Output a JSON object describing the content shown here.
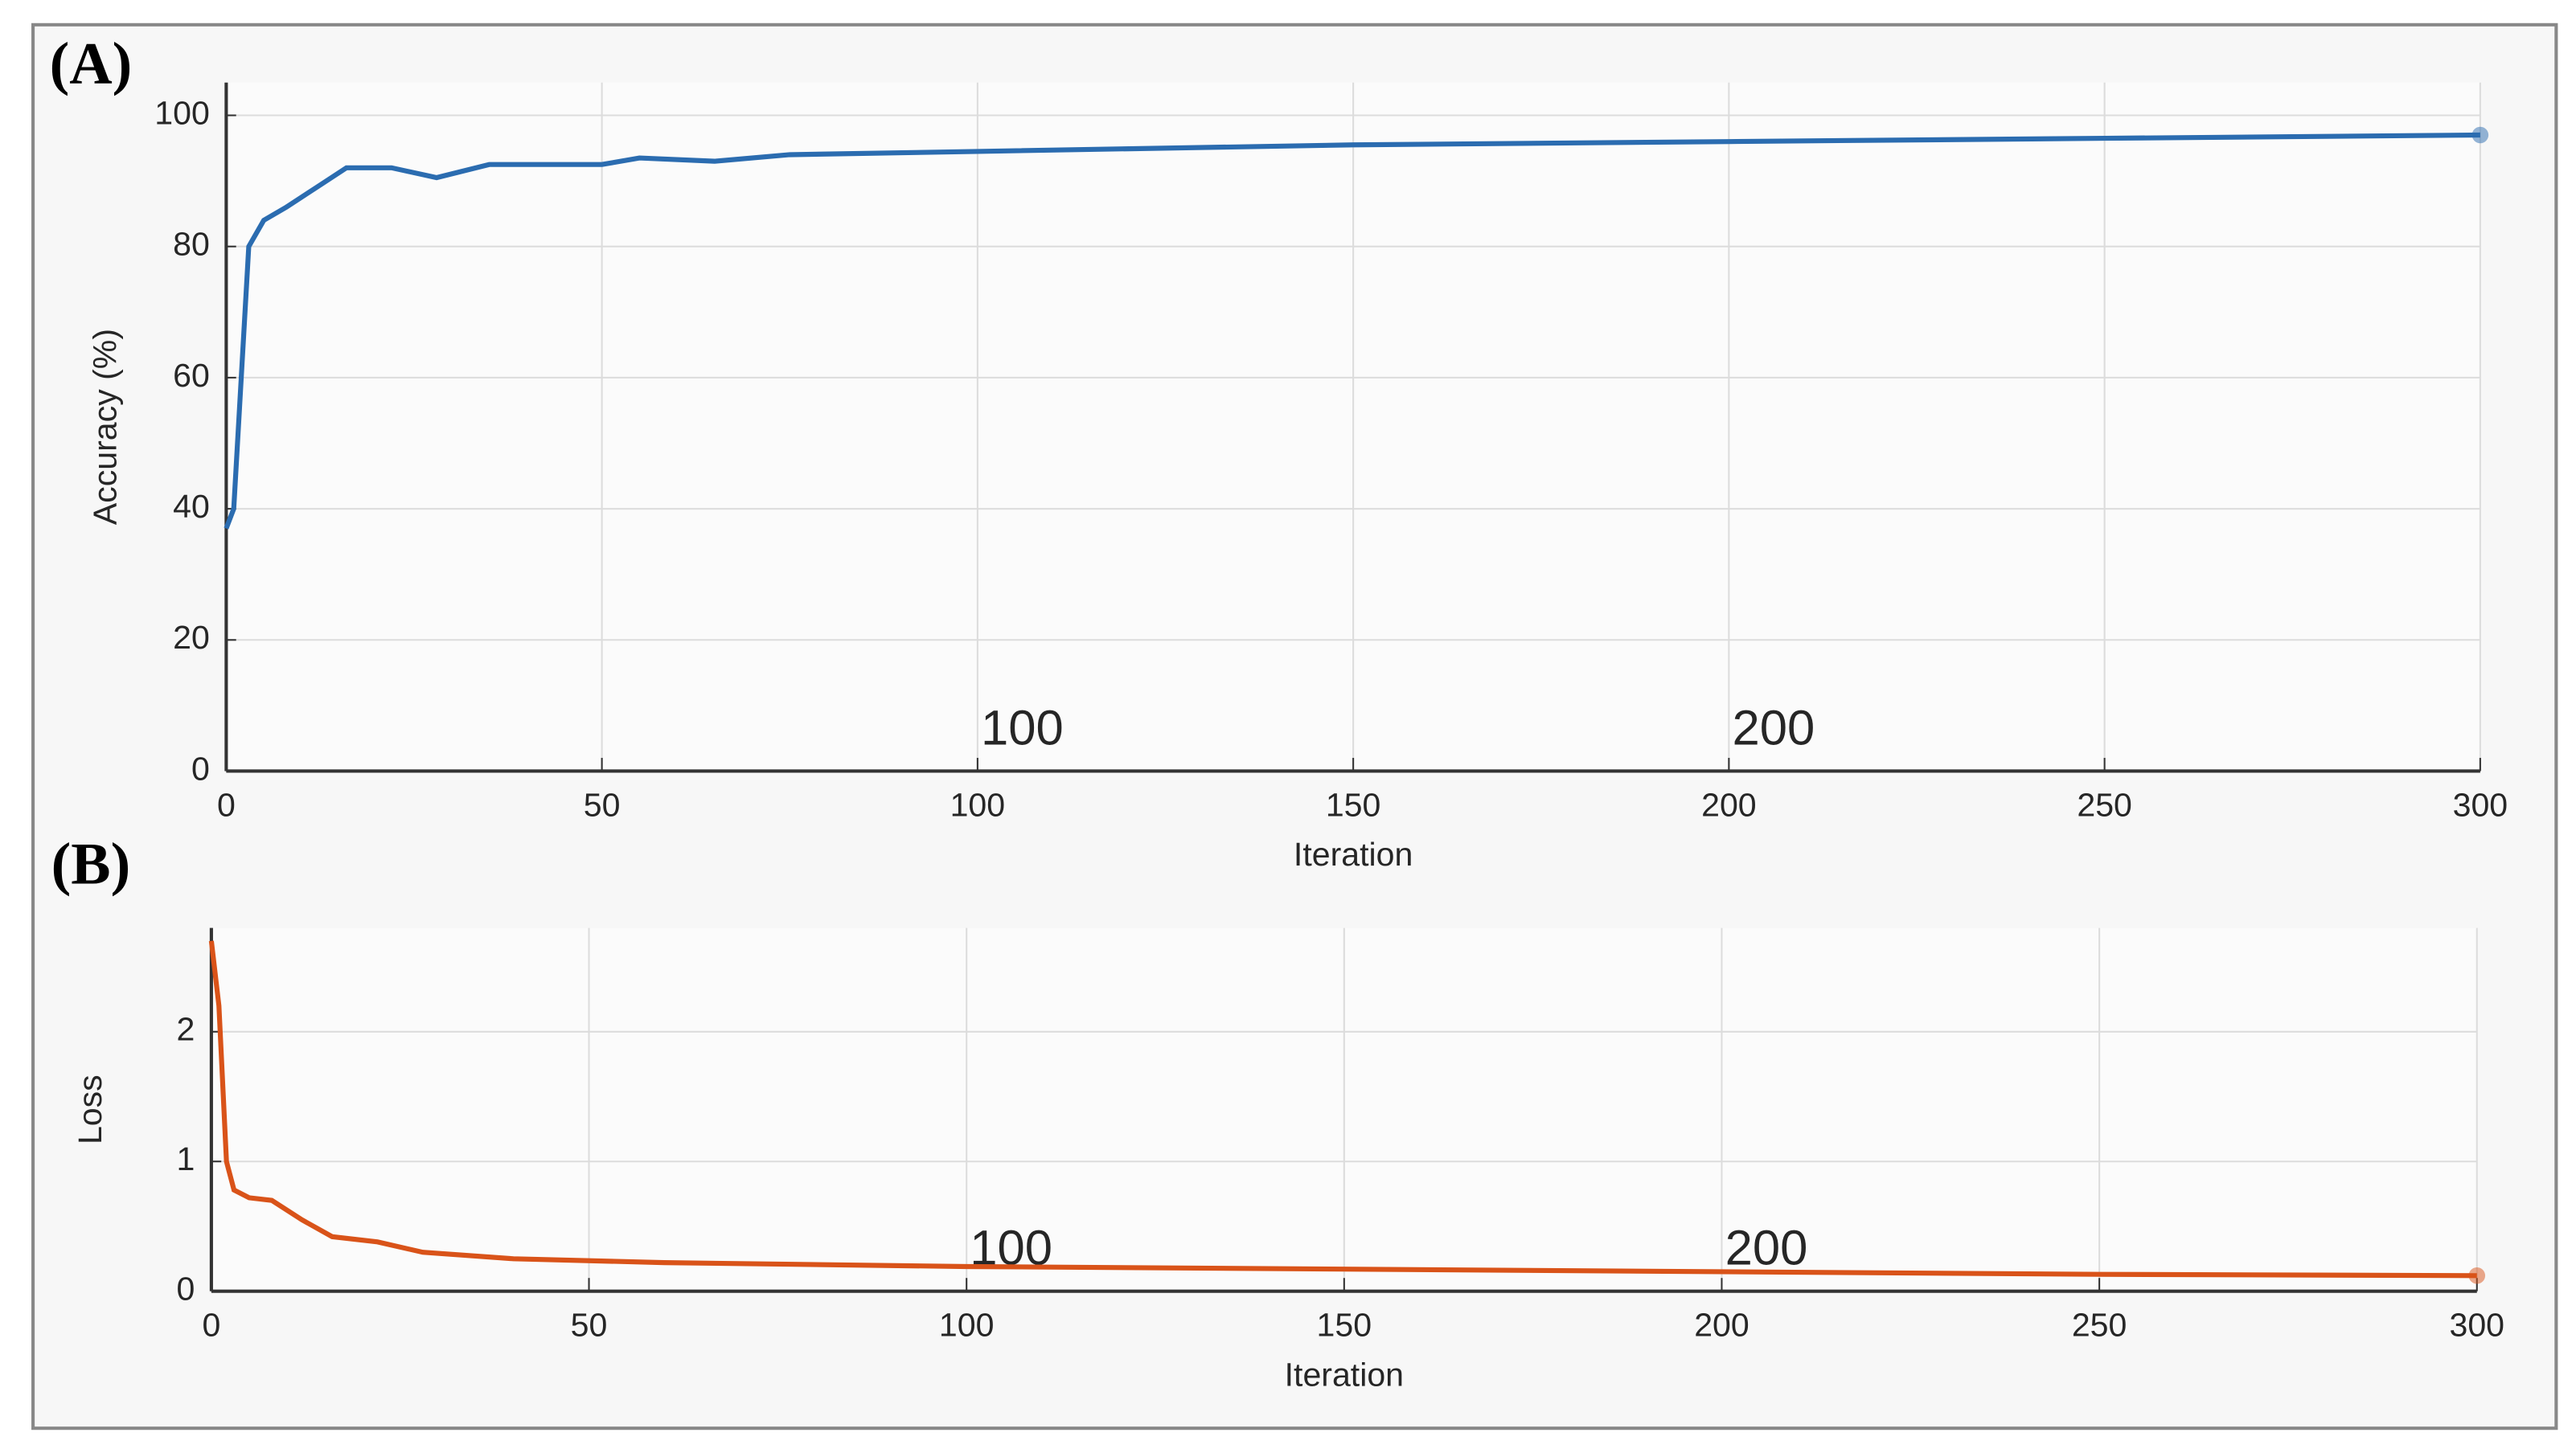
{
  "chart_data": [
    {
      "type": "line",
      "panel": "(A)",
      "x_label": "Iteration",
      "y_label": "Accuracy (%)",
      "x": [
        0,
        1,
        3,
        5,
        8,
        12,
        16,
        22,
        28,
        35,
        42,
        50,
        55,
        65,
        75,
        100,
        150,
        200,
        250,
        300
      ],
      "series": [
        {
          "name": "Accuracy",
          "color": "#2b6cb0",
          "values": [
            37,
            40,
            80,
            84,
            86,
            89,
            92,
            92,
            90.5,
            92.5,
            92.5,
            92.5,
            93.5,
            93,
            94,
            94.5,
            95.5,
            96,
            96.5,
            97
          ]
        }
      ],
      "xlim": [
        0,
        300
      ],
      "xticks": [
        0,
        50,
        100,
        150,
        200,
        250,
        300
      ],
      "ylim": [
        0,
        105
      ],
      "yticks": [
        0,
        20,
        40,
        60,
        80,
        100
      ],
      "grid": true,
      "annotations": [
        {
          "text": "100",
          "x": 100
        },
        {
          "text": "200",
          "x": 200
        }
      ]
    },
    {
      "type": "line",
      "panel": "(B)",
      "x_label": "Iteration",
      "y_label": "Loss",
      "x": [
        0,
        1,
        2,
        3,
        5,
        8,
        12,
        16,
        22,
        28,
        40,
        60,
        100,
        150,
        200,
        250,
        300
      ],
      "series": [
        {
          "name": "Loss",
          "color": "#d95319",
          "values": [
            2.7,
            2.2,
            1.0,
            0.78,
            0.72,
            0.7,
            0.55,
            0.42,
            0.38,
            0.3,
            0.25,
            0.22,
            0.19,
            0.17,
            0.15,
            0.13,
            0.12
          ]
        }
      ],
      "xlim": [
        0,
        300
      ],
      "xticks": [
        0,
        50,
        100,
        150,
        200,
        250,
        300
      ],
      "ylim": [
        0,
        2.8
      ],
      "yticks": [
        0,
        1,
        2
      ],
      "grid": true,
      "annotations": [
        {
          "text": "100",
          "x": 100
        },
        {
          "text": "200",
          "x": 200
        }
      ]
    }
  ]
}
